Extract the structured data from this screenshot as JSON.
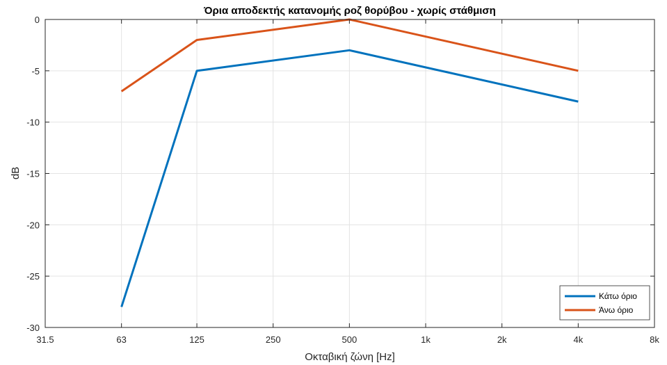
{
  "chart_data": {
    "type": "line",
    "title": "Όρια αποδεκτής κατανομής ροζ θορύβου - χωρίς στάθμιση",
    "xlabel": "Οκταβική ζώνη [Hz]",
    "ylabel": "dB",
    "x_scale": "log2",
    "x_ticks": [
      31.5,
      63,
      125,
      250,
      500,
      1000,
      2000,
      4000,
      8000
    ],
    "x_tick_labels": [
      "31.5",
      "63",
      "125",
      "250",
      "500",
      "1k",
      "2k",
      "4k",
      "8k"
    ],
    "y_ticks": [
      -30,
      -25,
      -20,
      -15,
      -10,
      -5,
      0
    ],
    "y_tick_labels": [
      "-30",
      "-25",
      "-20",
      "-15",
      "-10",
      "-5",
      "0"
    ],
    "xlim": [
      31.5,
      8000
    ],
    "ylim": [
      -30,
      0
    ],
    "grid": true,
    "legend_position": "bottom-right",
    "x": [
      63,
      125,
      500,
      4000
    ],
    "series": [
      {
        "name": "Κάτω όριο",
        "color": "#0072BD",
        "values": [
          -28,
          -5,
          -3,
          -8
        ]
      },
      {
        "name": "Άνω όριο",
        "color": "#D95319",
        "values": [
          -7,
          -2,
          0,
          -5
        ]
      }
    ]
  }
}
